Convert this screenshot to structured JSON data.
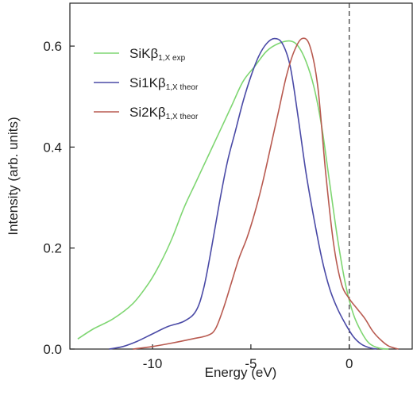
{
  "chart_data": {
    "type": "line",
    "xlabel": "Energy (eV)",
    "ylabel": "Intensity (arb. units)",
    "xlim": [
      -14.2,
      3.2
    ],
    "ylim": [
      0,
      0.685
    ],
    "xticks": [
      -10,
      -5,
      0
    ],
    "xtick_labels": [
      "-10",
      "-5",
      "0"
    ],
    "yticks": [
      0,
      0.2,
      0.4,
      0.6
    ],
    "ytick_labels": [
      "0.0",
      "0.2",
      "0.4",
      "0.6"
    ],
    "grid": false,
    "legend_position": "top-left",
    "reference_line": {
      "x": 0,
      "style": "dashed"
    },
    "series": [
      {
        "name": "SiKβ",
        "subscript": "1,X exp",
        "color": "#7fd672",
        "points": [
          [
            -13.8,
            0.02
          ],
          [
            -13,
            0.04
          ],
          [
            -12,
            0.06
          ],
          [
            -11,
            0.09
          ],
          [
            -10.2,
            0.13
          ],
          [
            -9.6,
            0.17
          ],
          [
            -9,
            0.22
          ],
          [
            -8.4,
            0.28
          ],
          [
            -7.8,
            0.33
          ],
          [
            -7.2,
            0.38
          ],
          [
            -6.6,
            0.43
          ],
          [
            -6,
            0.48
          ],
          [
            -5.4,
            0.53
          ],
          [
            -4.8,
            0.56
          ],
          [
            -4.2,
            0.59
          ],
          [
            -3.6,
            0.605
          ],
          [
            -3,
            0.61
          ],
          [
            -2.6,
            0.6
          ],
          [
            -2.2,
            0.57
          ],
          [
            -1.8,
            0.52
          ],
          [
            -1.4,
            0.44
          ],
          [
            -1,
            0.33
          ],
          [
            -0.6,
            0.22
          ],
          [
            -0.2,
            0.13
          ],
          [
            0.2,
            0.07
          ],
          [
            0.6,
            0.035
          ],
          [
            1,
            0.012
          ],
          [
            1.5,
            0.002
          ],
          [
            2,
            0
          ]
        ]
      },
      {
        "name": "Si1Kβ",
        "subscript": "1,X theor",
        "color": "#4a4aa6",
        "points": [
          [
            -12.2,
            0
          ],
          [
            -11.5,
            0.005
          ],
          [
            -10.8,
            0.015
          ],
          [
            -10,
            0.03
          ],
          [
            -9.2,
            0.045
          ],
          [
            -8.4,
            0.055
          ],
          [
            -7.8,
            0.075
          ],
          [
            -7.4,
            0.12
          ],
          [
            -7,
            0.2
          ],
          [
            -6.6,
            0.29
          ],
          [
            -6.2,
            0.37
          ],
          [
            -5.8,
            0.43
          ],
          [
            -5.4,
            0.49
          ],
          [
            -5,
            0.54
          ],
          [
            -4.6,
            0.58
          ],
          [
            -4.2,
            0.605
          ],
          [
            -3.8,
            0.615
          ],
          [
            -3.4,
            0.605
          ],
          [
            -3,
            0.56
          ],
          [
            -2.6,
            0.46
          ],
          [
            -2.2,
            0.35
          ],
          [
            -1.8,
            0.26
          ],
          [
            -1.4,
            0.18
          ],
          [
            -1,
            0.12
          ],
          [
            -0.6,
            0.08
          ],
          [
            -0.2,
            0.05
          ],
          [
            0.2,
            0.025
          ],
          [
            0.6,
            0.01
          ],
          [
            1,
            0.003
          ],
          [
            1.4,
            0
          ]
        ]
      },
      {
        "name": "Si2Kβ",
        "subscript": "1,X theor",
        "color": "#b85a50",
        "points": [
          [
            -11,
            0
          ],
          [
            -10,
            0.005
          ],
          [
            -9,
            0.012
          ],
          [
            -8,
            0.02
          ],
          [
            -7.2,
            0.027
          ],
          [
            -6.8,
            0.04
          ],
          [
            -6.4,
            0.08
          ],
          [
            -6,
            0.13
          ],
          [
            -5.6,
            0.18
          ],
          [
            -5.2,
            0.22
          ],
          [
            -4.8,
            0.27
          ],
          [
            -4.4,
            0.33
          ],
          [
            -4,
            0.4
          ],
          [
            -3.6,
            0.47
          ],
          [
            -3.2,
            0.54
          ],
          [
            -2.8,
            0.59
          ],
          [
            -2.4,
            0.615
          ],
          [
            -2,
            0.6
          ],
          [
            -1.6,
            0.52
          ],
          [
            -1.2,
            0.35
          ],
          [
            -0.8,
            0.21
          ],
          [
            -0.4,
            0.13
          ],
          [
            0,
            0.1
          ],
          [
            0.4,
            0.08
          ],
          [
            0.8,
            0.06
          ],
          [
            1.2,
            0.035
          ],
          [
            1.6,
            0.018
          ],
          [
            2,
            0.006
          ],
          [
            2.5,
            0
          ]
        ]
      }
    ]
  }
}
